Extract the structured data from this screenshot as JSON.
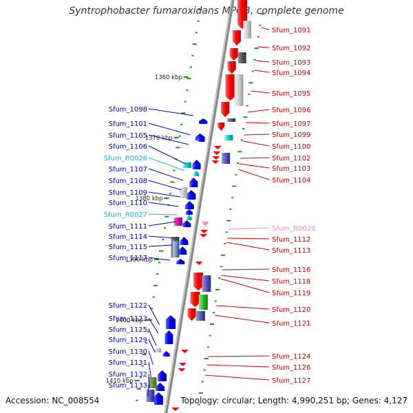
{
  "title": "Syntrophobacter fumaroxidans MPOB, complete genome",
  "accession_label": "Accession: NC_008554",
  "topology_label": "Topology: circular; Length: 4,990,251 bp; Genes: 4,127",
  "colors": {
    "forward": "#ff0000",
    "reverse": "#0000ff",
    "rna_reverse": "#00bfbf",
    "rna_forward": "#ff88c0",
    "backbone": "#888888",
    "ticks": "#228b22"
  },
  "kbp_marks": [
    "1360 kbp",
    "1370 kbp",
    "1380 kbp",
    "1390 kbp",
    "1400 kbp",
    "1410 kbp"
  ],
  "right_labels": [
    {
      "text": "Sfum_1091",
      "type": "forward"
    },
    {
      "text": "Sfum_1092",
      "type": "forward"
    },
    {
      "text": "Sfum_1093",
      "type": "forward"
    },
    {
      "text": "Sfum_1094",
      "type": "forward"
    },
    {
      "text": "Sfum_1095",
      "type": "forward"
    },
    {
      "text": "Sfum_1096",
      "type": "forward"
    },
    {
      "text": "Sfum_1097",
      "type": "forward"
    },
    {
      "text": "Sfum_1099",
      "type": "forward"
    },
    {
      "text": "Sfum_1100",
      "type": "forward"
    },
    {
      "text": "Sfum_1102",
      "type": "forward"
    },
    {
      "text": "Sfum_1103",
      "type": "forward"
    },
    {
      "text": "Sfum_1104",
      "type": "forward"
    },
    {
      "text": "Sfum_R0028",
      "type": "rna_forward"
    },
    {
      "text": "Sfum_1112",
      "type": "forward"
    },
    {
      "text": "Sfum_1113",
      "type": "forward"
    },
    {
      "text": "Sfum_1116",
      "type": "forward"
    },
    {
      "text": "Sfum_1118",
      "type": "forward"
    },
    {
      "text": "Sfum_1119",
      "type": "forward"
    },
    {
      "text": "Sfum_1120",
      "type": "forward"
    },
    {
      "text": "Sfum_1121",
      "type": "forward"
    },
    {
      "text": "Sfum_1124",
      "type": "forward"
    },
    {
      "text": "Sfum_1126",
      "type": "forward"
    },
    {
      "text": "Sfum_1127",
      "type": "forward"
    }
  ],
  "left_labels": [
    {
      "text": "Sfum_1098",
      "type": "reverse"
    },
    {
      "text": "Sfum_1101",
      "type": "reverse"
    },
    {
      "text": "Sfum_1105",
      "type": "reverse"
    },
    {
      "text": "Sfum_1106",
      "type": "reverse"
    },
    {
      "text": "Sfum_R0026",
      "type": "rna_reverse"
    },
    {
      "text": "Sfum_1107",
      "type": "reverse"
    },
    {
      "text": "Sfum_1108",
      "type": "reverse"
    },
    {
      "text": "Sfum_1109",
      "type": "reverse"
    },
    {
      "text": "Sfum_1110",
      "type": "reverse"
    },
    {
      "text": "Sfum_R0027",
      "type": "rna_reverse"
    },
    {
      "text": "Sfum_1111",
      "type": "reverse"
    },
    {
      "text": "Sfum_1114",
      "type": "reverse"
    },
    {
      "text": "Sfum_1115",
      "type": "reverse"
    },
    {
      "text": "Sfum_1117",
      "type": "reverse"
    },
    {
      "text": "Sfum_1122",
      "type": "reverse"
    },
    {
      "text": "Sfum_1123",
      "type": "reverse"
    },
    {
      "text": "Sfum_1125",
      "type": "reverse"
    },
    {
      "text": "Sfum_1129",
      "type": "reverse"
    },
    {
      "text": "Sfum_1130",
      "type": "reverse"
    },
    {
      "text": "Sfum_1131",
      "type": "reverse"
    },
    {
      "text": "Sfum_1132",
      "type": "reverse"
    },
    {
      "text": "Sfum_1133",
      "type": "reverse"
    }
  ]
}
